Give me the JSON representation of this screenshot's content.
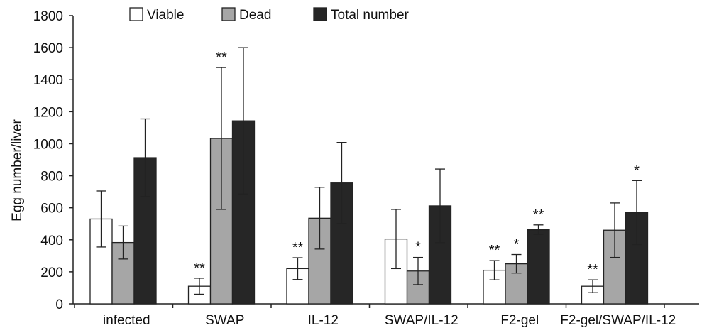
{
  "chart_data": {
    "type": "bar",
    "ylabel": "Egg number/liver",
    "xlabel": "",
    "ylim": [
      0,
      1800
    ],
    "yticks": [
      0,
      200,
      400,
      600,
      800,
      1000,
      1200,
      1400,
      1600,
      1800
    ],
    "categories": [
      "infected",
      "SWAP",
      "IL-12",
      "SWAP/IL-12",
      "F2-gel",
      "F2-gel/SWAP/IL-12"
    ],
    "legend_position": "top",
    "grid": false,
    "series": [
      {
        "name": "Viable",
        "color": "#ffffff",
        "values": [
          530,
          110,
          220,
          405,
          210,
          110
        ],
        "errors": [
          175,
          50,
          68,
          185,
          60,
          40
        ],
        "annotations": [
          "",
          "**",
          "**",
          "",
          "**",
          "**"
        ]
      },
      {
        "name": "Dead",
        "color": "#a6a6a6",
        "values": [
          383,
          1033,
          535,
          205,
          250,
          460
        ],
        "errors": [
          103,
          443,
          193,
          85,
          58,
          170
        ],
        "annotations": [
          "",
          "**",
          "",
          "*",
          "*",
          ""
        ]
      },
      {
        "name": "Total number",
        "color": "#262626",
        "values": [
          913,
          1143,
          755,
          612,
          463,
          570
        ],
        "errors": [
          242,
          457,
          253,
          230,
          30,
          200
        ],
        "annotations": [
          "",
          "",
          "",
          "",
          "**",
          "*"
        ]
      }
    ]
  }
}
